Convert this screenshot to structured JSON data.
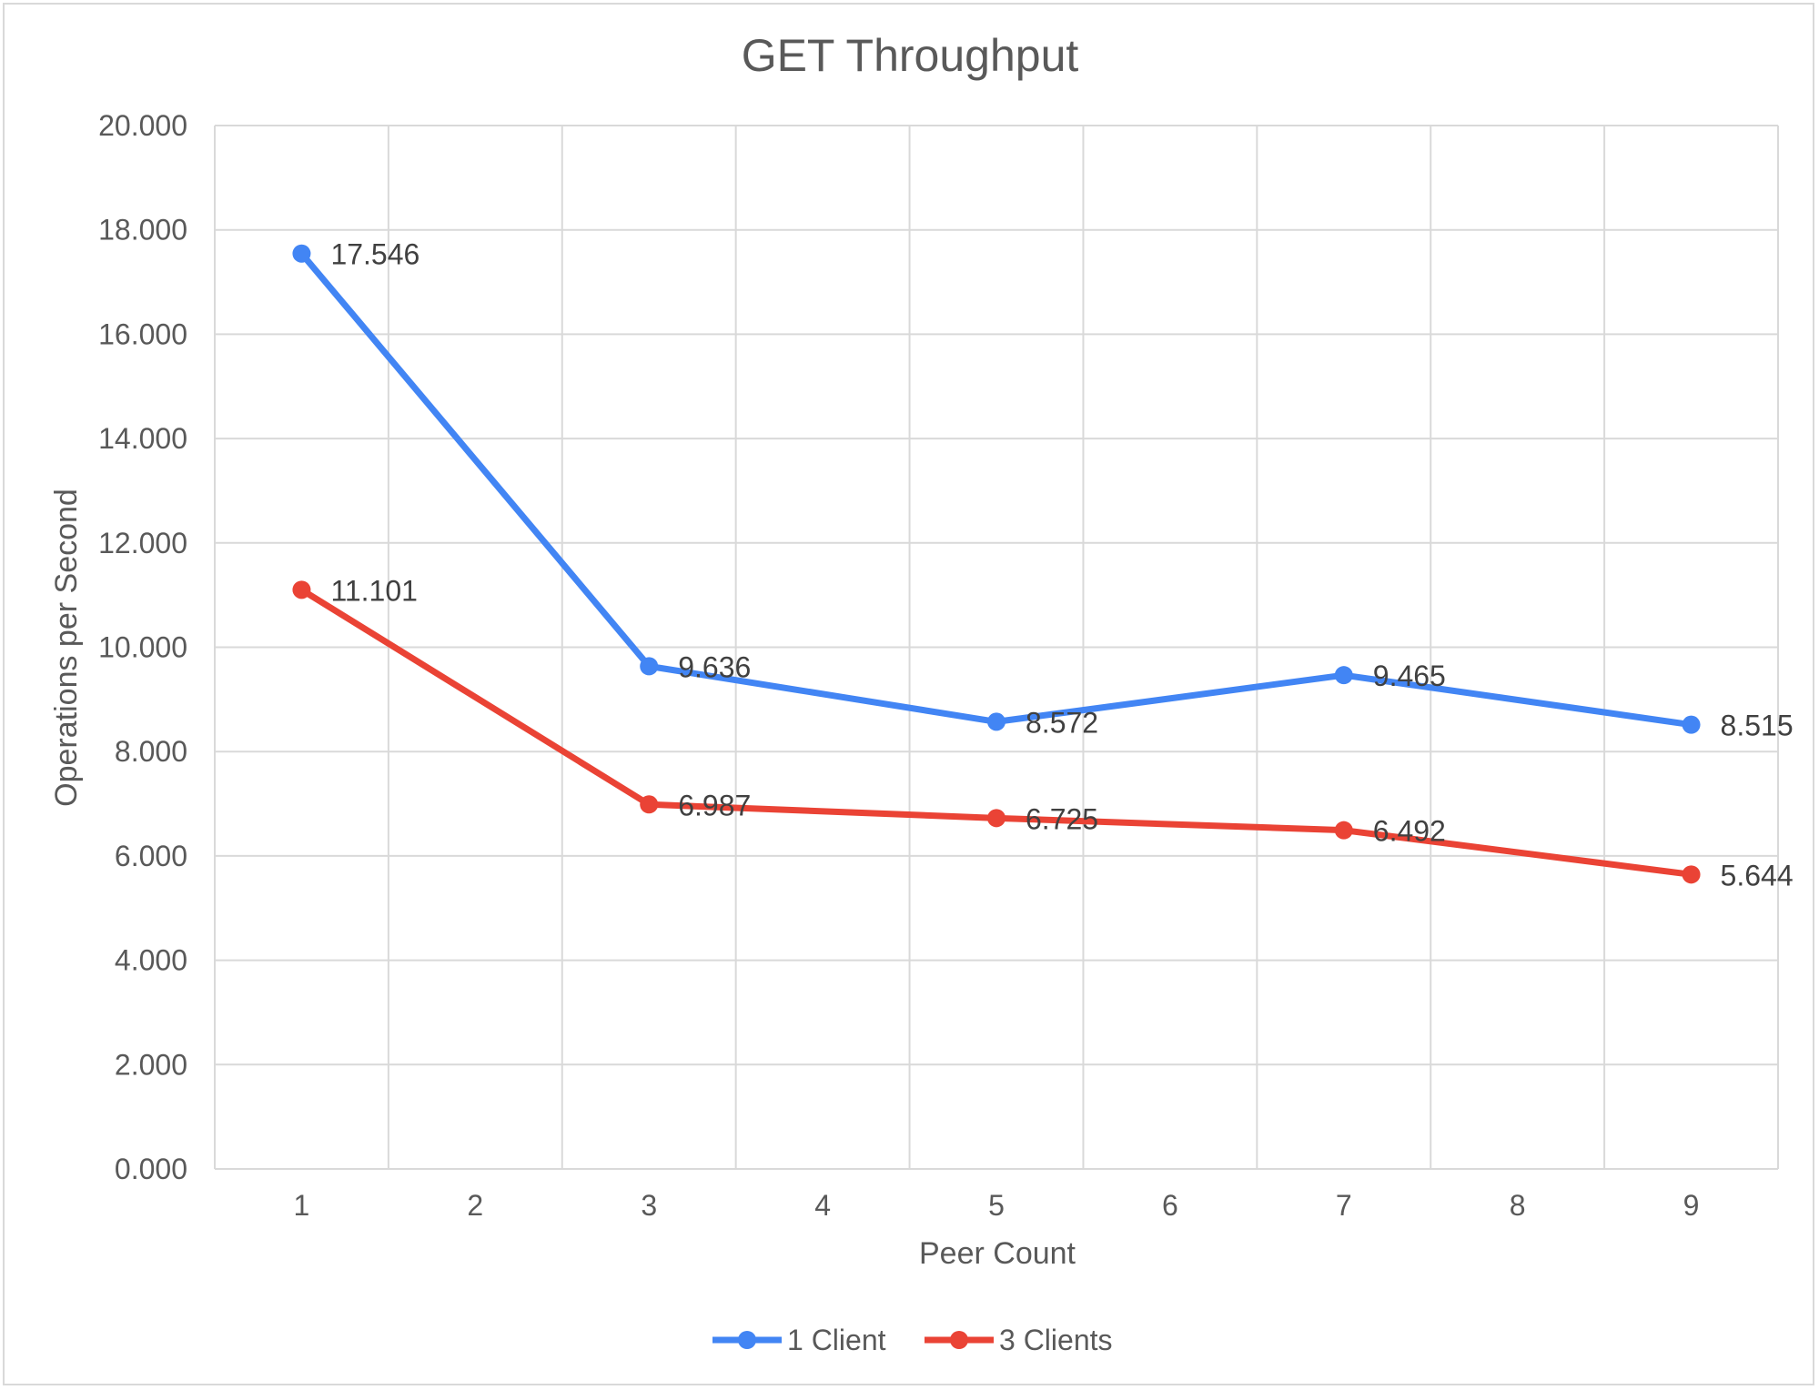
{
  "chart_data": {
    "type": "line",
    "title": "GET Throughput",
    "xlabel": "Peer Count",
    "ylabel": "Operations per Second",
    "x_ticks": [
      "1",
      "2",
      "3",
      "4",
      "5",
      "6",
      "7",
      "8",
      "9"
    ],
    "xlim": [
      0.5,
      9.5
    ],
    "y_ticks": [
      "0.000",
      "2.000",
      "4.000",
      "6.000",
      "8.000",
      "10.000",
      "12.000",
      "14.000",
      "16.000",
      "18.000",
      "20.000"
    ],
    "ylim": [
      0,
      20
    ],
    "grid": true,
    "legend_position": "bottom",
    "series": [
      {
        "name": "1 Client",
        "color": "#4285f4",
        "x": [
          1,
          3,
          5,
          7,
          9
        ],
        "values": [
          17.546,
          9.636,
          8.572,
          9.465,
          8.515
        ],
        "labels": [
          "17.546",
          "9.636",
          "8.572",
          "9.465",
          "8.515"
        ]
      },
      {
        "name": "3 Clients",
        "color": "#ea4335",
        "x": [
          1,
          3,
          5,
          7,
          9
        ],
        "values": [
          11.101,
          6.987,
          6.725,
          6.492,
          5.644
        ],
        "labels": [
          "11.101",
          "6.987",
          "6.725",
          "6.492",
          "5.644"
        ]
      }
    ]
  }
}
